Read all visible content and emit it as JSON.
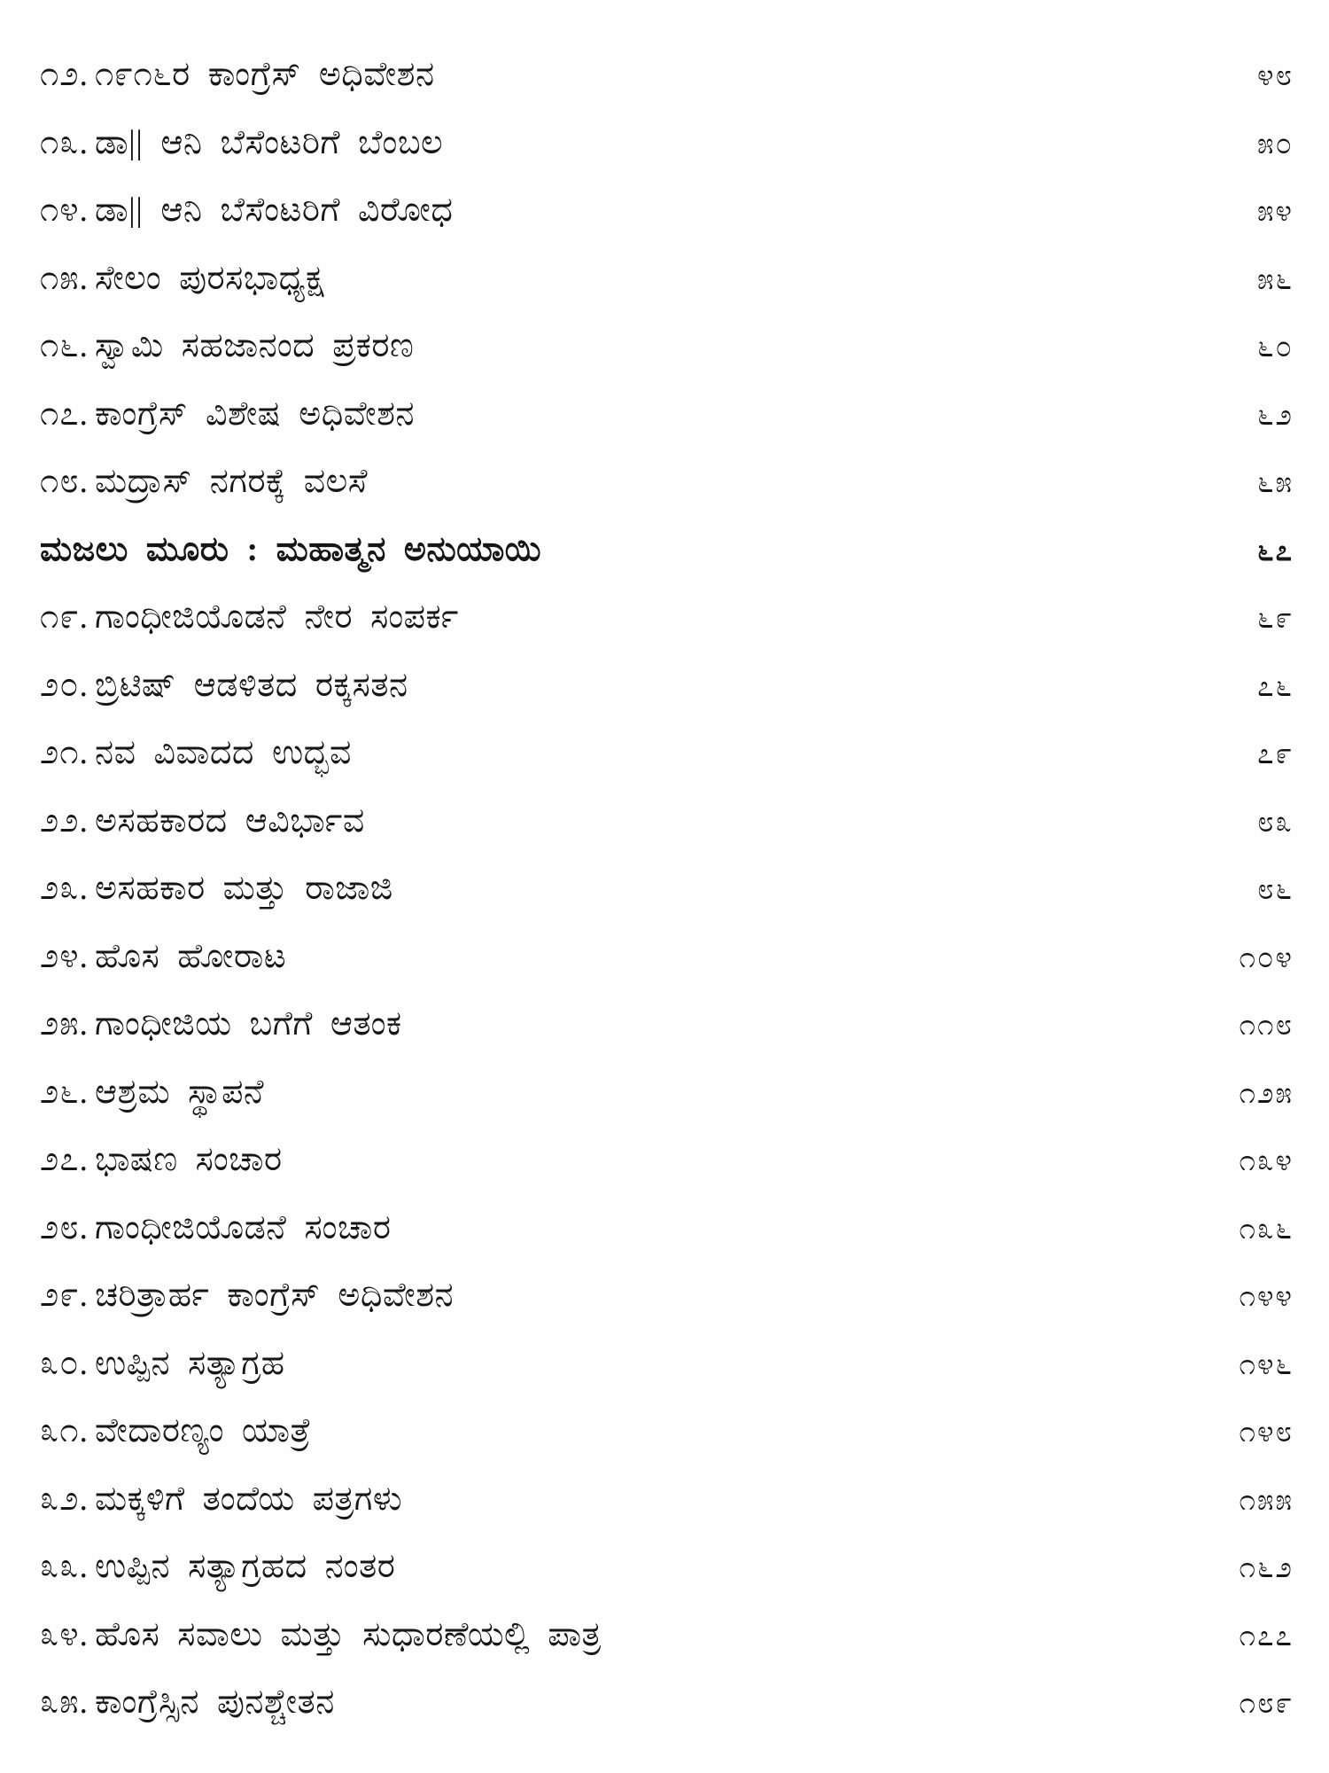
{
  "colors": {
    "ink": "#161616",
    "paper": "#fefefe"
  },
  "toc": {
    "entries": [
      {
        "num": "೧೨.",
        "num_value": 12,
        "title": "೧೯೧೬ರ ಕಾಂಗ್ರೆಸ್ ಅಧಿವೇಶನ",
        "page": "೪೮",
        "page_value": 48,
        "style": "normal"
      },
      {
        "num": "೧೩.",
        "num_value": 13,
        "title": "ಡಾ|| ಆನಿ ಬೆಸೆಂಟರಿಗೆ ಬೆಂಬಲ",
        "page": "೫೦",
        "page_value": 50,
        "style": "normal"
      },
      {
        "num": "೧೪.",
        "num_value": 14,
        "title": "ಡಾ|| ಆನಿ ಬೆಸೆಂಟರಿಗೆ ವಿರೋಧ",
        "page": "೫೪",
        "page_value": 54,
        "style": "normal"
      },
      {
        "num": "೧೫.",
        "num_value": 15,
        "title": "ಸೇಲಂ ಪುರಸಭಾಧ್ಯಕ್ಷ",
        "page": "೫೬",
        "page_value": 56,
        "style": "normal"
      },
      {
        "num": "೧೬.",
        "num_value": 16,
        "title": "ಸ್ವಾಮಿ ಸಹಜಾನಂದ ಪ್ರಕರಣ",
        "page": "೬೦",
        "page_value": 60,
        "style": "normal"
      },
      {
        "num": "೧೭.",
        "num_value": 17,
        "title": "ಕಾಂಗ್ರೆಸ್ ವಿಶೇಷ ಅಧಿವೇಶನ",
        "page": "೬೨",
        "page_value": 62,
        "style": "normal"
      },
      {
        "num": "೧೮.",
        "num_value": 18,
        "title": "ಮದ್ರಾಸ್ ನಗರಕ್ಕೆ ವಲಸೆ",
        "page": "೬೫",
        "page_value": 65,
        "style": "normal"
      },
      {
        "num": "",
        "num_value": null,
        "title": "ಮಜಲು ಮೂರು : ಮಹಾತ್ಮನ ಅನುಯಾಯಿ",
        "page": "೬೭",
        "page_value": 67,
        "style": "section"
      },
      {
        "num": "೧೯.",
        "num_value": 19,
        "title": "ಗಾಂಧೀಜಿಯೊಡನೆ ನೇರ ಸಂಪರ್ಕ",
        "page": "೬೯",
        "page_value": 69,
        "style": "normal"
      },
      {
        "num": "೨೦.",
        "num_value": 20,
        "title": "ಬ್ರಿಟಿಷ್ ಆಡಳಿತದ ರಕ್ಕಸತನ",
        "page": "೭೬",
        "page_value": 76,
        "style": "normal"
      },
      {
        "num": "೨೧.",
        "num_value": 21,
        "title": "ನವ ವಿವಾದದ ಉದ್ಭವ",
        "page": "೭೯",
        "page_value": 79,
        "style": "normal"
      },
      {
        "num": "೨೨.",
        "num_value": 22,
        "title": "ಅಸಹಕಾರದ ಆವಿರ್ಭಾವ",
        "page": "೮೩",
        "page_value": 83,
        "style": "normal"
      },
      {
        "num": "೨೩.",
        "num_value": 23,
        "title": "ಅಸಹಕಾರ ಮತ್ತು ರಾಜಾಜಿ",
        "page": "೮೬",
        "page_value": 86,
        "style": "normal"
      },
      {
        "num": "೨೪.",
        "num_value": 24,
        "title": "ಹೊಸ ಹೋರಾಟ",
        "page": "೧೦೪",
        "page_value": 104,
        "style": "normal"
      },
      {
        "num": "೨೫.",
        "num_value": 25,
        "title": "ಗಾಂಧೀಜಿಯ ಬಗೆಗೆ ಆತಂಕ",
        "page": "೧೧೮",
        "page_value": 118,
        "style": "normal"
      },
      {
        "num": "೨೬.",
        "num_value": 26,
        "title": "ಆಶ್ರಮ ಸ್ಥಾಪನೆ",
        "page": "೧೨೫",
        "page_value": 125,
        "style": "normal"
      },
      {
        "num": "೨೭.",
        "num_value": 27,
        "title": "ಭಾಷಣ ಸಂಚಾರ",
        "page": "೧೩೪",
        "page_value": 134,
        "style": "normal"
      },
      {
        "num": "೨೮.",
        "num_value": 28,
        "title": "ಗಾಂಧೀಜಿಯೊಡನೆ ಸಂಚಾರ",
        "page": "೧೩೬",
        "page_value": 136,
        "style": "normal"
      },
      {
        "num": "೨೯.",
        "num_value": 29,
        "title": "ಚರಿತ್ರಾರ್ಹ ಕಾಂಗ್ರೆಸ್ ಅಧಿವೇಶನ",
        "page": "೧೪೪",
        "page_value": 144,
        "style": "normal"
      },
      {
        "num": "೩೦.",
        "num_value": 30,
        "title": "ಉಪ್ಪಿನ ಸತ್ಯಾಗ್ರಹ",
        "page": "೧೪೬",
        "page_value": 146,
        "style": "normal"
      },
      {
        "num": "೩೧.",
        "num_value": 31,
        "title": "ವೇದಾರಣ್ಯಂ ಯಾತ್ರೆ",
        "page": "೧೪೮",
        "page_value": 148,
        "style": "normal"
      },
      {
        "num": "೩೨.",
        "num_value": 32,
        "title": "ಮಕ್ಕಳಿಗೆ ತಂದೆಯ ಪತ್ರಗಳು",
        "page": "೧೫೫",
        "page_value": 155,
        "style": "normal"
      },
      {
        "num": "೩೩.",
        "num_value": 33,
        "title": "ಉಪ್ಪಿನ ಸತ್ಯಾಗ್ರಹದ ನಂತರ",
        "page": "೧೬೨",
        "page_value": 162,
        "style": "normal"
      },
      {
        "num": "೩೪.",
        "num_value": 34,
        "title": "ಹೊಸ ಸವಾಲು ಮತ್ತು ಸುಧಾರಣೆಯಲ್ಲಿ ಪಾತ್ರ",
        "page": "೧೭೭",
        "page_value": 177,
        "style": "normal"
      },
      {
        "num": "೩೫.",
        "num_value": 35,
        "title": "ಕಾಂಗ್ರೆಸ್ಸಿನ ಪುನಶ್ಚೇತನ",
        "page": "೧೮೯",
        "page_value": 189,
        "style": "normal"
      }
    ]
  }
}
